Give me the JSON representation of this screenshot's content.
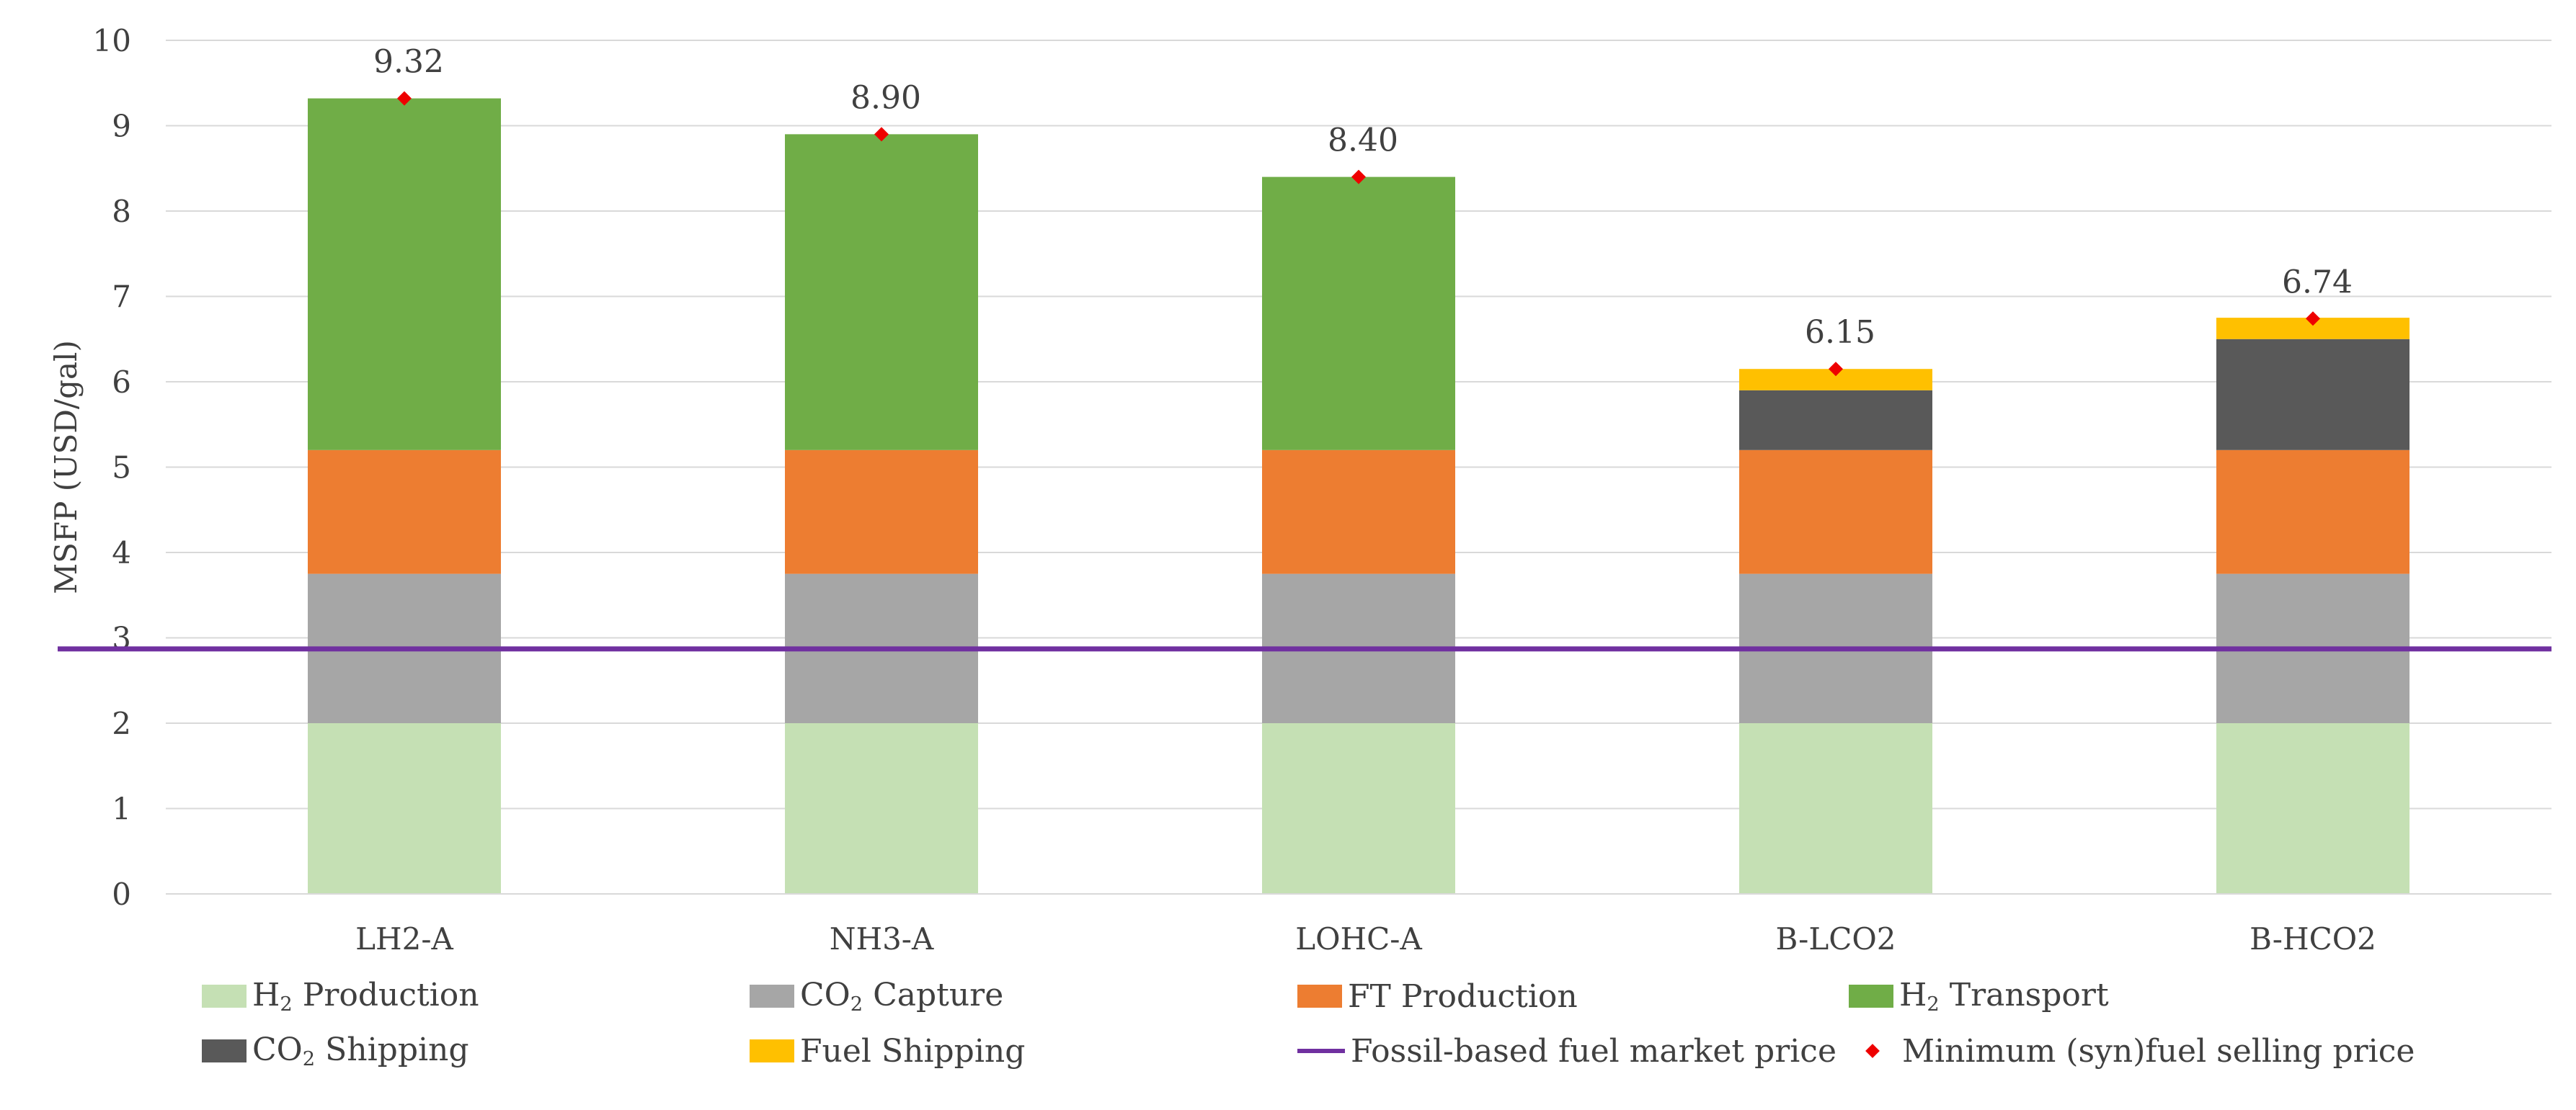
{
  "chart_data": {
    "type": "bar",
    "stacked": true,
    "title": "",
    "xlabel": "",
    "ylabel": "MSFP (USD/gal)",
    "ylim": [
      0,
      10
    ],
    "yticks": [
      "0",
      "1",
      "2",
      "3",
      "4",
      "5",
      "6",
      "7",
      "8",
      "9",
      "10"
    ],
    "grid": true,
    "legend_position": "bottom",
    "categories": [
      "LH2-A",
      "NH3-A",
      "LOHC-A",
      "B-LCO2",
      "B-HCO2"
    ],
    "series": [
      {
        "key": "h2prod",
        "name_main": "H",
        "name_sub": "2",
        "name_rest": " Production",
        "color": "#c5e0b4",
        "values": [
          2.0,
          2.0,
          2.0,
          2.0,
          2.0
        ]
      },
      {
        "key": "co2cap",
        "name_main": "CO",
        "name_sub": "2",
        "name_rest": " Capture",
        "color": "#a6a6a6",
        "values": [
          1.75,
          1.75,
          1.75,
          1.75,
          1.75
        ]
      },
      {
        "key": "ftprod",
        "name_main": "FT Production",
        "name_sub": "",
        "name_rest": "",
        "color": "#ed7d31",
        "values": [
          1.45,
          1.45,
          1.45,
          1.45,
          1.45
        ]
      },
      {
        "key": "h2trans",
        "name_main": "H",
        "name_sub": "2",
        "name_rest": " Transport",
        "color": "#70ad47",
        "values": [
          4.12,
          3.7,
          3.2,
          0,
          0
        ]
      },
      {
        "key": "co2ship",
        "name_main": "CO",
        "name_sub": "2",
        "name_rest": " Shipping",
        "color": "#595959",
        "values": [
          0,
          0,
          0,
          0.7,
          1.3
        ]
      },
      {
        "key": "fuelship",
        "name_main": "Fuel Shipping",
        "name_sub": "",
        "name_rest": "",
        "color": "#ffc000",
        "values": [
          0,
          0,
          0,
          0.25,
          0.25
        ]
      }
    ],
    "msfp": {
      "name": "Minimum (syn)fuel selling price",
      "color": "#ee0000",
      "values": [
        9.32,
        8.9,
        8.4,
        6.15,
        6.74
      ],
      "labels": [
        "9.32",
        "8.90",
        "8.40",
        "6.15",
        "6.74"
      ]
    },
    "fossil_price": {
      "name": "Fossil-based fuel market price",
      "color": "#7030a0",
      "value": 2.87
    }
  }
}
